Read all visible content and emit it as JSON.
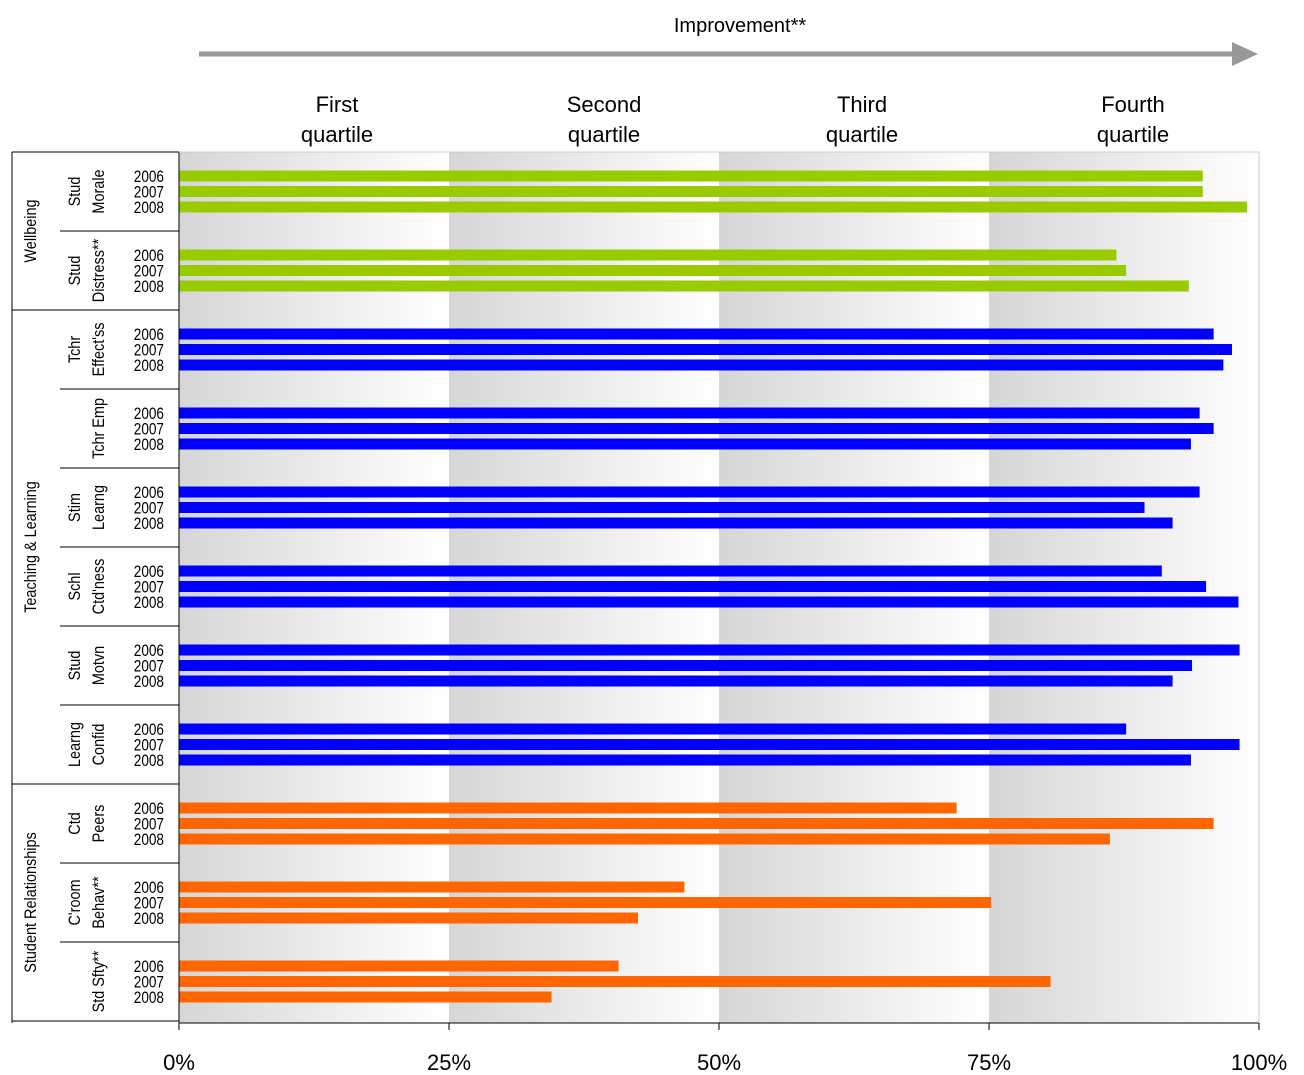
{
  "chart_data": {
    "type": "bar",
    "orientation": "horizontal",
    "title": "Improvement**",
    "xlim": [
      0,
      100
    ],
    "x_ticks": [
      "0%",
      "25%",
      "50%",
      "75%",
      "100%"
    ],
    "quartiles": [
      {
        "line1": "First",
        "line2": "quartile"
      },
      {
        "line1": "Second",
        "line2": "quartile"
      },
      {
        "line1": "Third",
        "line2": "quartile"
      },
      {
        "line1": "Fourth",
        "line2": "quartile"
      }
    ],
    "years": [
      "2006",
      "2007",
      "2008"
    ],
    "groups": [
      {
        "name": "Wellbeing",
        "color": "#99cc00",
        "measures": [
          {
            "line1": "Stud",
            "line2": "Morale",
            "values": [
              94.8,
              94.8,
              98.9
            ]
          },
          {
            "line1": "Stud",
            "line2": "Distress**",
            "values": [
              86.8,
              87.7,
              93.5
            ]
          }
        ]
      },
      {
        "name": "Teaching & Learning",
        "color": "#0000ff",
        "measures": [
          {
            "line1": "Tchr",
            "line2": "Effect'ss",
            "values": [
              95.8,
              97.5,
              96.7
            ]
          },
          {
            "line1": "",
            "line2": "Tchr Emp",
            "values": [
              94.5,
              95.8,
              93.7
            ]
          },
          {
            "line1": "Stim",
            "line2": "Learng",
            "values": [
              94.5,
              89.4,
              92.0
            ]
          },
          {
            "line1": "Schl",
            "line2": "Ctd'ness",
            "values": [
              91.0,
              95.1,
              98.1
            ]
          },
          {
            "line1": "Stud",
            "line2": "Motvn",
            "values": [
              98.2,
              93.8,
              92.0
            ]
          },
          {
            "line1": "Learng",
            "line2": "Confid",
            "values": [
              87.7,
              98.2,
              93.7
            ]
          }
        ]
      },
      {
        "name": "Student Relationships",
        "color": "#ff6600",
        "measures": [
          {
            "line1": "Ctd",
            "line2": "Peers",
            "values": [
              72.0,
              95.8,
              86.2
            ]
          },
          {
            "line1": "C'room",
            "line2": "Behav**",
            "values": [
              46.8,
              75.2,
              42.5
            ]
          },
          {
            "line1": "",
            "line2": "Std Sfty**",
            "values": [
              40.7,
              80.7,
              34.5
            ]
          }
        ]
      }
    ]
  }
}
